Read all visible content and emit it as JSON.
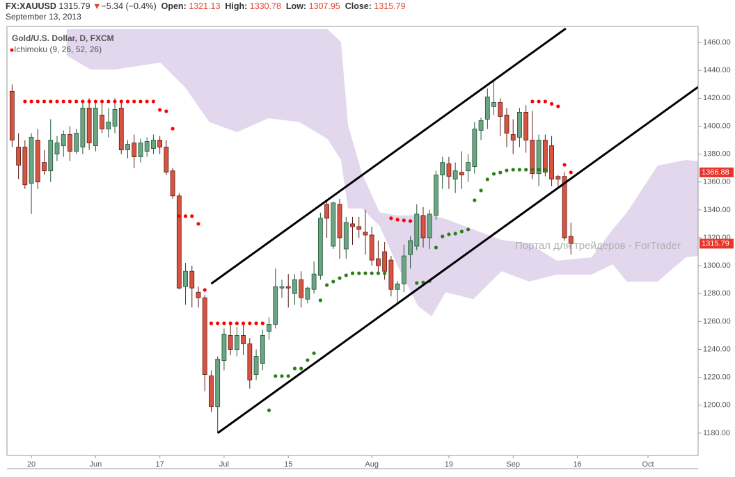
{
  "header": {
    "symbol": "FX:XAUUSD",
    "price": "1315.79",
    "arrow": "▼",
    "change": "−5.34 (−0.4%)",
    "open_label": "Open:",
    "open": "1321.13",
    "high_label": "High:",
    "high": "1330.78",
    "low_label": "Low:",
    "low": "1307.95",
    "close_label": "Close:",
    "close": "1315.79",
    "date": "September 13, 2013"
  },
  "chart_data": {
    "type": "candlestick",
    "subtitle": "Gold/U.S. Dollar, D, FXCM",
    "indicator": "Ichimoku (9, 26, 52, 26)",
    "annotation": "Портал для трейдеров - ForTrader",
    "up_color": "#6ba583",
    "down_color": "#d75442",
    "open": [
      1425,
      1385,
      1385,
      1359,
      1390,
      1374,
      1368,
      1380,
      1386,
      1394,
      1382,
      1385,
      1413,
      1386,
      1408,
      1398,
      1400,
      1413,
      1383,
      1388,
      1378,
      1382,
      1384,
      1390,
      1385,
      1368,
      1350,
      1285,
      1296,
      1281,
      1277,
      1221,
      1199,
      1232,
      1250,
      1240,
      1250,
      1244,
      1222,
      1230,
      1253,
      1258,
      1284,
      1285,
      1280,
      1290,
      1276,
      1283,
      1293,
      1344,
      1314,
      1344,
      1312,
      1330,
      1328,
      1324,
      1322,
      1305,
      1310,
      1304,
      1283,
      1287,
      1308,
      1314,
      1336,
      1320,
      1336,
      1365,
      1373,
      1362,
      1367,
      1368,
      1371,
      1397,
      1405,
      1414,
      1417,
      1408,
      1394,
      1392,
      1410,
      1390,
      1366,
      1390,
      1386,
      1364,
      1364,
      1321.13
    ],
    "high": [
      1430,
      1395,
      1390,
      1395,
      1398,
      1383,
      1405,
      1393,
      1397,
      1400,
      1398,
      1418,
      1420,
      1418,
      1418,
      1413,
      1420,
      1418,
      1390,
      1394,
      1391,
      1392,
      1394,
      1393,
      1390,
      1370,
      1352,
      1302,
      1300,
      1285,
      1279,
      1225,
      1235,
      1255,
      1259,
      1256,
      1259,
      1248,
      1240,
      1254,
      1263,
      1298,
      1290,
      1294,
      1294,
      1296,
      1285,
      1303,
      1338,
      1346,
      1346,
      1348,
      1335,
      1335,
      1335,
      1340,
      1328,
      1318,
      1317,
      1307,
      1289,
      1315,
      1321,
      1344,
      1342,
      1340,
      1368,
      1378,
      1378,
      1374,
      1382,
      1380,
      1403,
      1406,
      1427,
      1433,
      1420,
      1413,
      1405,
      1413,
      1415,
      1411,
      1394,
      1394,
      1393,
      1365,
      1367,
      1330.78
    ],
    "low": [
      1385,
      1362,
      1355,
      1337,
      1355,
      1365,
      1360,
      1375,
      1378,
      1375,
      1380,
      1380,
      1383,
      1382,
      1395,
      1392,
      1395,
      1380,
      1377,
      1370,
      1374,
      1378,
      1380,
      1380,
      1365,
      1348,
      1283,
      1272,
      1270,
      1270,
      1210,
      1195,
      1180,
      1225,
      1236,
      1235,
      1236,
      1212,
      1218,
      1225,
      1247,
      1255,
      1277,
      1270,
      1272,
      1270,
      1273,
      1280,
      1290,
      1320,
      1312,
      1305,
      1305,
      1315,
      1320,
      1308,
      1300,
      1295,
      1290,
      1278,
      1272,
      1281,
      1298,
      1311,
      1313,
      1312,
      1333,
      1355,
      1355,
      1352,
      1355,
      1360,
      1366,
      1390,
      1398,
      1408,
      1393,
      1385,
      1380,
      1385,
      1381,
      1362,
      1357,
      1364,
      1357,
      1357,
      1318,
      1307.95
    ],
    "close": [
      1390,
      1372,
      1358,
      1392,
      1360,
      1368,
      1390,
      1388,
      1394,
      1382,
      1395,
      1413,
      1388,
      1413,
      1398,
      1403,
      1412,
      1383,
      1387,
      1378,
      1388,
      1389,
      1390,
      1385,
      1367,
      1350,
      1284,
      1296,
      1284,
      1277,
      1222,
      1199,
      1233,
      1251,
      1240,
      1250,
      1244,
      1218,
      1235,
      1250,
      1258,
      1285,
      1285,
      1284,
      1290,
      1277,
      1284,
      1294,
      1334,
      1334,
      1345,
      1320,
      1331,
      1328,
      1326,
      1322,
      1304,
      1300,
      1296,
      1283,
      1287,
      1307,
      1318,
      1337,
      1320,
      1337,
      1365,
      1374,
      1364,
      1368,
      1365,
      1374,
      1398,
      1404,
      1421,
      1417,
      1407,
      1395,
      1390,
      1410,
      1390,
      1366,
      1390,
      1367,
      1362,
      1362,
      1320,
      1315.79
    ],
    "sar_above": {
      "color": "#ff0000",
      "values": [
        null,
        null,
        1417.7,
        1417.7,
        1417.7,
        1417.7,
        1417.7,
        1417.7,
        1417.7,
        1417.7,
        1417.7,
        1417.7,
        1417.7,
        1417.7,
        1417.7,
        1417.7,
        1417.7,
        1417.7,
        1417.7,
        1417.7,
        1417.7,
        1417.7,
        1417.7,
        1411.7,
        1410.7,
        1398.2,
        1335.5,
        1335.5,
        1335.5,
        1330,
        1282.6,
        1258.7,
        1258.7,
        1258.7,
        1258.7,
        1258.7,
        1258.7,
        1258.7,
        1258.7,
        1258.7,
        null,
        null,
        null,
        null,
        null,
        null,
        null,
        null,
        null,
        null,
        null,
        null,
        null,
        null,
        null,
        null,
        null,
        null,
        null,
        1334,
        1333,
        1332.5,
        1332,
        null,
        null,
        null,
        null,
        null,
        null,
        null,
        null,
        null,
        null,
        null,
        null,
        null,
        null,
        null,
        null,
        null,
        null,
        1417.7,
        1417.7,
        1417.7,
        1416,
        1414.2,
        1372.3,
        1366.88
      ]
    },
    "sar_below": {
      "color": "#2e7d1a",
      "values": [
        null,
        null,
        null,
        null,
        null,
        null,
        null,
        null,
        null,
        null,
        null,
        null,
        null,
        null,
        null,
        null,
        null,
        null,
        null,
        null,
        null,
        null,
        null,
        null,
        null,
        null,
        null,
        null,
        null,
        null,
        null,
        null,
        null,
        null,
        null,
        null,
        null,
        null,
        null,
        null,
        1196.4,
        1220.9,
        1220.9,
        1220.9,
        1226.3,
        1226.3,
        1232.3,
        1237.3,
        1275.2,
        1286.1,
        1288.6,
        1291.1,
        1293.1,
        1294.6,
        1294.6,
        1294.6,
        1294.6,
        1294.6,
        1294.6,
        null,
        null,
        null,
        null,
        1287.6,
        1288,
        1289,
        1313,
        1321,
        1322.5,
        1323,
        1324.5,
        1326,
        1346.9,
        1353.9,
        1361.9,
        1365.8,
        1366.8,
        1368.3,
        1368.8,
        1368.8,
        1368.8,
        1368.8,
        1368.8,
        1368.8,
        null,
        null,
        null,
        null
      ]
    },
    "cloud": {
      "color": "#e3d7ee",
      "x": [
        8.5,
        12.2,
        16,
        23.1,
        26.9,
        30.7,
        35,
        39.9,
        44.7,
        49.1,
        51.2,
        52.3,
        54.5,
        57.2,
        59.9,
        63.2,
        65.3,
        67.5,
        71.8,
        76.2,
        80.5,
        84.8,
        90.2,
        93.5,
        95.7,
        100.5,
        104.9,
        106.8
      ],
      "upper": [
        1469.5,
        1469.5,
        1469.5,
        1469.5,
        1469.5,
        1469.5,
        1469.5,
        1469.5,
        1469.5,
        1469.5,
        1460.5,
        1400.7,
        1365.8,
        1338.4,
        1336,
        1336,
        1336,
        1333.5,
        1326,
        1318.5,
        1316,
        1303.6,
        1306,
        1326,
        1338,
        1371.8,
        1375.8,
        1374.8
      ],
      "lower": [
        1450.6,
        1440.6,
        1440.6,
        1445.6,
        1428,
        1403,
        1395.7,
        1405.7,
        1403,
        1390.8,
        1375.8,
        1341,
        1341,
        1328.5,
        1301,
        1271,
        1263.7,
        1281,
        1276,
        1296,
        1288.6,
        1293.6,
        1293.6,
        1301,
        1288.6,
        1288.6,
        1306,
        1307
      ]
    },
    "trend_lines": [
      {
        "x": [
          31,
          86.2
        ],
        "y": [
          1287.1,
          1470
        ]
      },
      {
        "x": [
          32,
          106.8
        ],
        "y": [
          1180,
          1428.1
        ]
      }
    ],
    "xlim": [
      -0.8,
      106.8
    ],
    "xticks": [
      {
        "value": 3,
        "label": "20"
      },
      {
        "value": 13,
        "label": "Jun"
      },
      {
        "value": 23,
        "label": "17"
      },
      {
        "value": 33,
        "label": "Jul"
      },
      {
        "value": 43,
        "label": "15"
      },
      {
        "value": 56,
        "label": "Aug"
      },
      {
        "value": 68,
        "label": "19"
      },
      {
        "value": 78,
        "label": "Sep"
      },
      {
        "value": 88,
        "label": "16"
      },
      {
        "value": 99,
        "label": "Oct"
      }
    ],
    "ylim": [
      1164,
      1471.5
    ],
    "yticks": [
      {
        "value": 1180,
        "label": "1180.00"
      },
      {
        "value": 1200,
        "label": "1200.00"
      },
      {
        "value": 1220,
        "label": "1220.00"
      },
      {
        "value": 1240,
        "label": "1240.00"
      },
      {
        "value": 1260,
        "label": "1260.00"
      },
      {
        "value": 1280,
        "label": "1280.00"
      },
      {
        "value": 1300,
        "label": "1300.00"
      },
      {
        "value": 1320,
        "label": "1320.00"
      },
      {
        "value": 1340,
        "label": "1340.00"
      },
      {
        "value": 1360,
        "label": "1360.00"
      },
      {
        "value": 1380,
        "label": "1380.00"
      },
      {
        "value": 1400,
        "label": "1400.00"
      },
      {
        "value": 1420,
        "label": "1420.00"
      },
      {
        "value": 1440,
        "label": "1440.00"
      },
      {
        "value": 1460,
        "label": "1460.00"
      }
    ]
  }
}
